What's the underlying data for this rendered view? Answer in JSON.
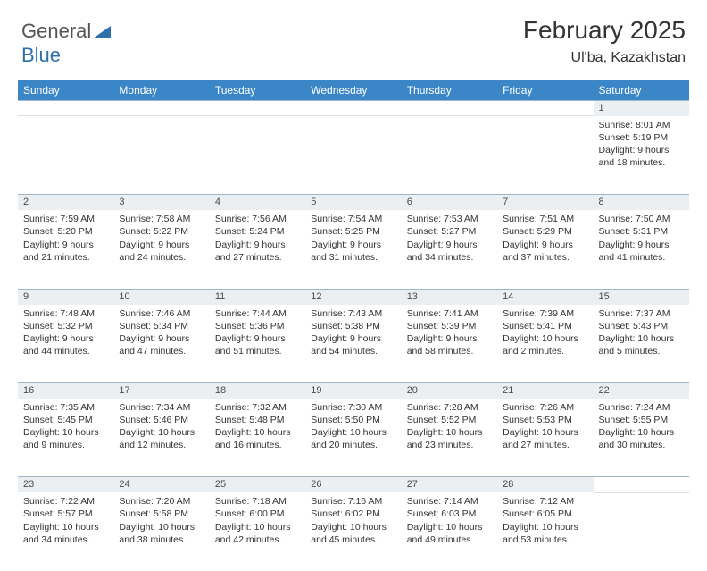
{
  "brand": {
    "part1": "General",
    "part2": "Blue"
  },
  "title": "February 2025",
  "location": "Ul'ba, Kazakhstan",
  "header_bg": "#3b86c6",
  "header_fg": "#ffffff",
  "daynum_bg": "#eceff1",
  "border_color": "#9fb6c9",
  "weekdays": [
    "Sunday",
    "Monday",
    "Tuesday",
    "Wednesday",
    "Thursday",
    "Friday",
    "Saturday"
  ],
  "weeks": [
    {
      "nums": [
        "",
        "",
        "",
        "",
        "",
        "",
        "1"
      ],
      "cells": [
        null,
        null,
        null,
        null,
        null,
        null,
        {
          "sunrise": "Sunrise: 8:01 AM",
          "sunset": "Sunset: 5:19 PM",
          "day1": "Daylight: 9 hours",
          "day2": "and 18 minutes."
        }
      ]
    },
    {
      "nums": [
        "2",
        "3",
        "4",
        "5",
        "6",
        "7",
        "8"
      ],
      "cells": [
        {
          "sunrise": "Sunrise: 7:59 AM",
          "sunset": "Sunset: 5:20 PM",
          "day1": "Daylight: 9 hours",
          "day2": "and 21 minutes."
        },
        {
          "sunrise": "Sunrise: 7:58 AM",
          "sunset": "Sunset: 5:22 PM",
          "day1": "Daylight: 9 hours",
          "day2": "and 24 minutes."
        },
        {
          "sunrise": "Sunrise: 7:56 AM",
          "sunset": "Sunset: 5:24 PM",
          "day1": "Daylight: 9 hours",
          "day2": "and 27 minutes."
        },
        {
          "sunrise": "Sunrise: 7:54 AM",
          "sunset": "Sunset: 5:25 PM",
          "day1": "Daylight: 9 hours",
          "day2": "and 31 minutes."
        },
        {
          "sunrise": "Sunrise: 7:53 AM",
          "sunset": "Sunset: 5:27 PM",
          "day1": "Daylight: 9 hours",
          "day2": "and 34 minutes."
        },
        {
          "sunrise": "Sunrise: 7:51 AM",
          "sunset": "Sunset: 5:29 PM",
          "day1": "Daylight: 9 hours",
          "day2": "and 37 minutes."
        },
        {
          "sunrise": "Sunrise: 7:50 AM",
          "sunset": "Sunset: 5:31 PM",
          "day1": "Daylight: 9 hours",
          "day2": "and 41 minutes."
        }
      ]
    },
    {
      "nums": [
        "9",
        "10",
        "11",
        "12",
        "13",
        "14",
        "15"
      ],
      "cells": [
        {
          "sunrise": "Sunrise: 7:48 AM",
          "sunset": "Sunset: 5:32 PM",
          "day1": "Daylight: 9 hours",
          "day2": "and 44 minutes."
        },
        {
          "sunrise": "Sunrise: 7:46 AM",
          "sunset": "Sunset: 5:34 PM",
          "day1": "Daylight: 9 hours",
          "day2": "and 47 minutes."
        },
        {
          "sunrise": "Sunrise: 7:44 AM",
          "sunset": "Sunset: 5:36 PM",
          "day1": "Daylight: 9 hours",
          "day2": "and 51 minutes."
        },
        {
          "sunrise": "Sunrise: 7:43 AM",
          "sunset": "Sunset: 5:38 PM",
          "day1": "Daylight: 9 hours",
          "day2": "and 54 minutes."
        },
        {
          "sunrise": "Sunrise: 7:41 AM",
          "sunset": "Sunset: 5:39 PM",
          "day1": "Daylight: 9 hours",
          "day2": "and 58 minutes."
        },
        {
          "sunrise": "Sunrise: 7:39 AM",
          "sunset": "Sunset: 5:41 PM",
          "day1": "Daylight: 10 hours",
          "day2": "and 2 minutes."
        },
        {
          "sunrise": "Sunrise: 7:37 AM",
          "sunset": "Sunset: 5:43 PM",
          "day1": "Daylight: 10 hours",
          "day2": "and 5 minutes."
        }
      ]
    },
    {
      "nums": [
        "16",
        "17",
        "18",
        "19",
        "20",
        "21",
        "22"
      ],
      "cells": [
        {
          "sunrise": "Sunrise: 7:35 AM",
          "sunset": "Sunset: 5:45 PM",
          "day1": "Daylight: 10 hours",
          "day2": "and 9 minutes."
        },
        {
          "sunrise": "Sunrise: 7:34 AM",
          "sunset": "Sunset: 5:46 PM",
          "day1": "Daylight: 10 hours",
          "day2": "and 12 minutes."
        },
        {
          "sunrise": "Sunrise: 7:32 AM",
          "sunset": "Sunset: 5:48 PM",
          "day1": "Daylight: 10 hours",
          "day2": "and 16 minutes."
        },
        {
          "sunrise": "Sunrise: 7:30 AM",
          "sunset": "Sunset: 5:50 PM",
          "day1": "Daylight: 10 hours",
          "day2": "and 20 minutes."
        },
        {
          "sunrise": "Sunrise: 7:28 AM",
          "sunset": "Sunset: 5:52 PM",
          "day1": "Daylight: 10 hours",
          "day2": "and 23 minutes."
        },
        {
          "sunrise": "Sunrise: 7:26 AM",
          "sunset": "Sunset: 5:53 PM",
          "day1": "Daylight: 10 hours",
          "day2": "and 27 minutes."
        },
        {
          "sunrise": "Sunrise: 7:24 AM",
          "sunset": "Sunset: 5:55 PM",
          "day1": "Daylight: 10 hours",
          "day2": "and 30 minutes."
        }
      ]
    },
    {
      "nums": [
        "23",
        "24",
        "25",
        "26",
        "27",
        "28",
        ""
      ],
      "cells": [
        {
          "sunrise": "Sunrise: 7:22 AM",
          "sunset": "Sunset: 5:57 PM",
          "day1": "Daylight: 10 hours",
          "day2": "and 34 minutes."
        },
        {
          "sunrise": "Sunrise: 7:20 AM",
          "sunset": "Sunset: 5:58 PM",
          "day1": "Daylight: 10 hours",
          "day2": "and 38 minutes."
        },
        {
          "sunrise": "Sunrise: 7:18 AM",
          "sunset": "Sunset: 6:00 PM",
          "day1": "Daylight: 10 hours",
          "day2": "and 42 minutes."
        },
        {
          "sunrise": "Sunrise: 7:16 AM",
          "sunset": "Sunset: 6:02 PM",
          "day1": "Daylight: 10 hours",
          "day2": "and 45 minutes."
        },
        {
          "sunrise": "Sunrise: 7:14 AM",
          "sunset": "Sunset: 6:03 PM",
          "day1": "Daylight: 10 hours",
          "day2": "and 49 minutes."
        },
        {
          "sunrise": "Sunrise: 7:12 AM",
          "sunset": "Sunset: 6:05 PM",
          "day1": "Daylight: 10 hours",
          "day2": "and 53 minutes."
        },
        null
      ]
    }
  ]
}
